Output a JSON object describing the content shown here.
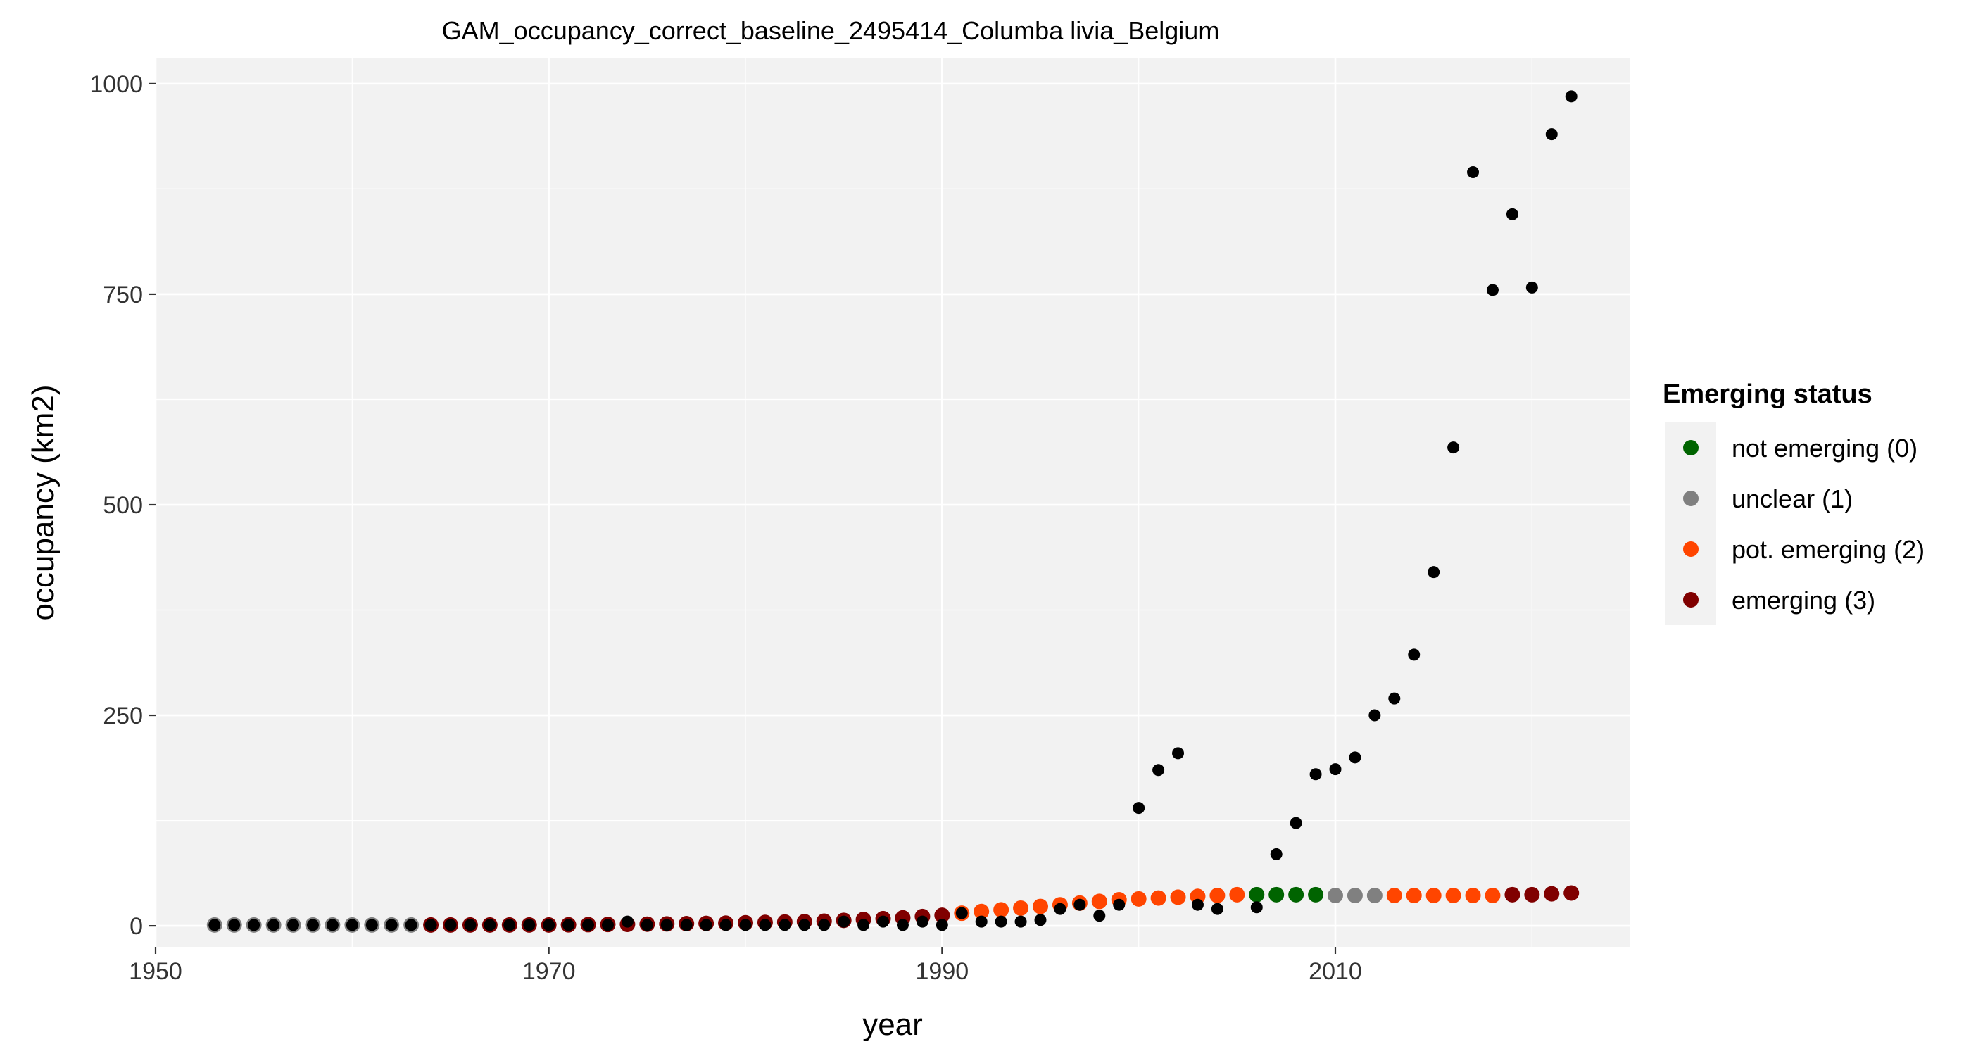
{
  "chart_data": {
    "type": "scatter",
    "title": "GAM_occupancy_correct_baseline_2495414_Columba livia_Belgium",
    "xlabel": "year",
    "ylabel": "occupancy (km2)",
    "xlim": [
      1950,
      2025
    ],
    "ylim": [
      -25,
      1030
    ],
    "x_ticks": [
      1950,
      1970,
      1990,
      2010
    ],
    "y_ticks": [
      0,
      250,
      500,
      750,
      1000
    ],
    "x_tick_labels": [
      "1950",
      "1970",
      "1990",
      "2010"
    ],
    "y_tick_labels": [
      "0",
      "250",
      "500",
      "750",
      "1000"
    ],
    "grid": true,
    "legend_position": "right",
    "legend": {
      "title": "Emerging status",
      "items": [
        {
          "label": "not emerging (0)",
          "color": "#006400"
        },
        {
          "label": "unclear (1)",
          "color": "#808080"
        },
        {
          "label": "pot. emerging (2)",
          "color": "#FF4500"
        },
        {
          "label": "emerging (3)",
          "color": "#800000"
        }
      ]
    },
    "colors": {
      "panel_background": "#F2F2F2",
      "grid": "#FFFFFF",
      "observed": "#000000"
    },
    "observed_series": {
      "x": [
        1953,
        1954,
        1955,
        1956,
        1957,
        1958,
        1959,
        1960,
        1961,
        1962,
        1963,
        1964,
        1965,
        1966,
        1967,
        1968,
        1969,
        1970,
        1971,
        1972,
        1973,
        1974,
        1975,
        1976,
        1977,
        1978,
        1979,
        1980,
        1981,
        1982,
        1983,
        1984,
        1985,
        1986,
        1987,
        1988,
        1989,
        1990,
        1991,
        1992,
        1993,
        1994,
        1995,
        1996,
        1997,
        1998,
        1999,
        2000,
        2001,
        2002,
        2003,
        2004,
        2006,
        2007,
        2008,
        2009,
        2010,
        2011,
        2012,
        2013,
        2014,
        2015,
        2016,
        2017,
        2018,
        2019,
        2020,
        2021,
        2022
      ],
      "y": [
        1,
        1,
        1,
        1,
        1,
        1,
        1,
        1,
        1,
        1,
        1,
        1,
        1,
        1,
        1,
        1,
        1,
        1,
        1,
        1,
        1,
        5,
        1,
        1,
        1,
        1,
        1,
        1,
        1,
        1,
        1,
        1,
        5,
        1,
        5,
        1,
        5,
        1,
        15,
        5,
        5,
        5,
        7,
        20,
        25,
        12,
        25,
        140,
        185,
        205,
        25,
        20,
        22,
        85,
        122,
        180,
        186,
        200,
        250,
        270,
        322,
        420,
        568,
        895,
        755,
        845,
        758,
        940,
        985
      ]
    },
    "fitted_series": {
      "x": [
        1953,
        1954,
        1955,
        1956,
        1957,
        1958,
        1959,
        1960,
        1961,
        1962,
        1963,
        1964,
        1965,
        1966,
        1967,
        1968,
        1969,
        1970,
        1971,
        1972,
        1973,
        1974,
        1975,
        1976,
        1977,
        1978,
        1979,
        1980,
        1981,
        1982,
        1983,
        1984,
        1985,
        1986,
        1987,
        1988,
        1989,
        1990,
        1991,
        1992,
        1993,
        1994,
        1995,
        1996,
        1997,
        1998,
        1999,
        2000,
        2001,
        2002,
        2003,
        2004,
        2005,
        2006,
        2007,
        2008,
        2009,
        2010,
        2011,
        2012,
        2013,
        2014,
        2015,
        2016,
        2017,
        2018,
        2019,
        2020,
        2021,
        2022
      ],
      "y": [
        1,
        1,
        1,
        1,
        1,
        1,
        1,
        1,
        1,
        1,
        1,
        1,
        1,
        1,
        1,
        1,
        1,
        1,
        1.2,
        1.4,
        1.6,
        1.8,
        2,
        2.3,
        2.6,
        2.9,
        3.2,
        3.6,
        4,
        4.5,
        5,
        5.5,
        6.5,
        7.5,
        8.5,
        9.5,
        11,
        12.5,
        15,
        17,
        19,
        21,
        23,
        25,
        27,
        29,
        31,
        32,
        33,
        34,
        35,
        36,
        37,
        37,
        37,
        37,
        37,
        36,
        36,
        36,
        36,
        36,
        36,
        36,
        36,
        36,
        37,
        37,
        38,
        39
      ],
      "status": [
        1,
        1,
        1,
        1,
        1,
        1,
        1,
        1,
        1,
        1,
        1,
        3,
        3,
        3,
        3,
        3,
        3,
        3,
        3,
        3,
        3,
        3,
        3,
        3,
        3,
        3,
        3,
        3,
        3,
        3,
        3,
        3,
        3,
        3,
        3,
        3,
        3,
        3,
        2,
        2,
        2,
        2,
        2,
        2,
        2,
        2,
        2,
        2,
        2,
        2,
        2,
        2,
        2,
        0,
        0,
        0,
        0,
        1,
        1,
        1,
        2,
        2,
        2,
        2,
        2,
        2,
        3,
        3,
        3,
        3
      ]
    }
  }
}
